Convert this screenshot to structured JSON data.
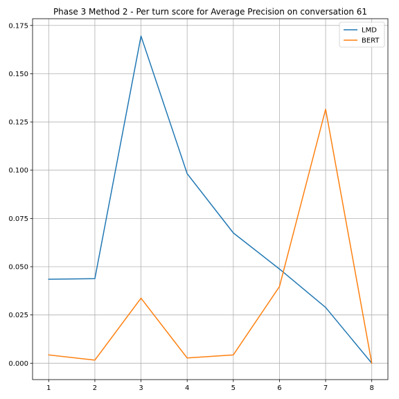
{
  "chart_data": {
    "type": "line",
    "title": "Phase 3 Method 2 - Per turn score for Average Precision on conversation 61",
    "xlabel": "",
    "ylabel": "",
    "x": [
      1,
      2,
      3,
      4,
      5,
      6,
      7,
      8
    ],
    "xlim": [
      0.65,
      8.35
    ],
    "ylim": [
      -0.0085,
      0.1785
    ],
    "x_ticks": [
      "1",
      "2",
      "3",
      "4",
      "5",
      "6",
      "7",
      "8"
    ],
    "y_ticks": [
      "0.000",
      "0.025",
      "0.050",
      "0.075",
      "0.100",
      "0.125",
      "0.150",
      "0.175"
    ],
    "grid": true,
    "legend_position": "top-right",
    "series": [
      {
        "name": "LMD",
        "color": "#1f77b4",
        "values": [
          0.0435,
          0.0438,
          0.1695,
          0.0982,
          0.0675,
          0.0488,
          0.0289,
          0.0
        ]
      },
      {
        "name": "BERT",
        "color": "#ff7f0e",
        "values": [
          0.0043,
          0.0016,
          0.0337,
          0.0027,
          0.0043,
          0.0397,
          0.1316,
          0.0
        ]
      }
    ]
  }
}
